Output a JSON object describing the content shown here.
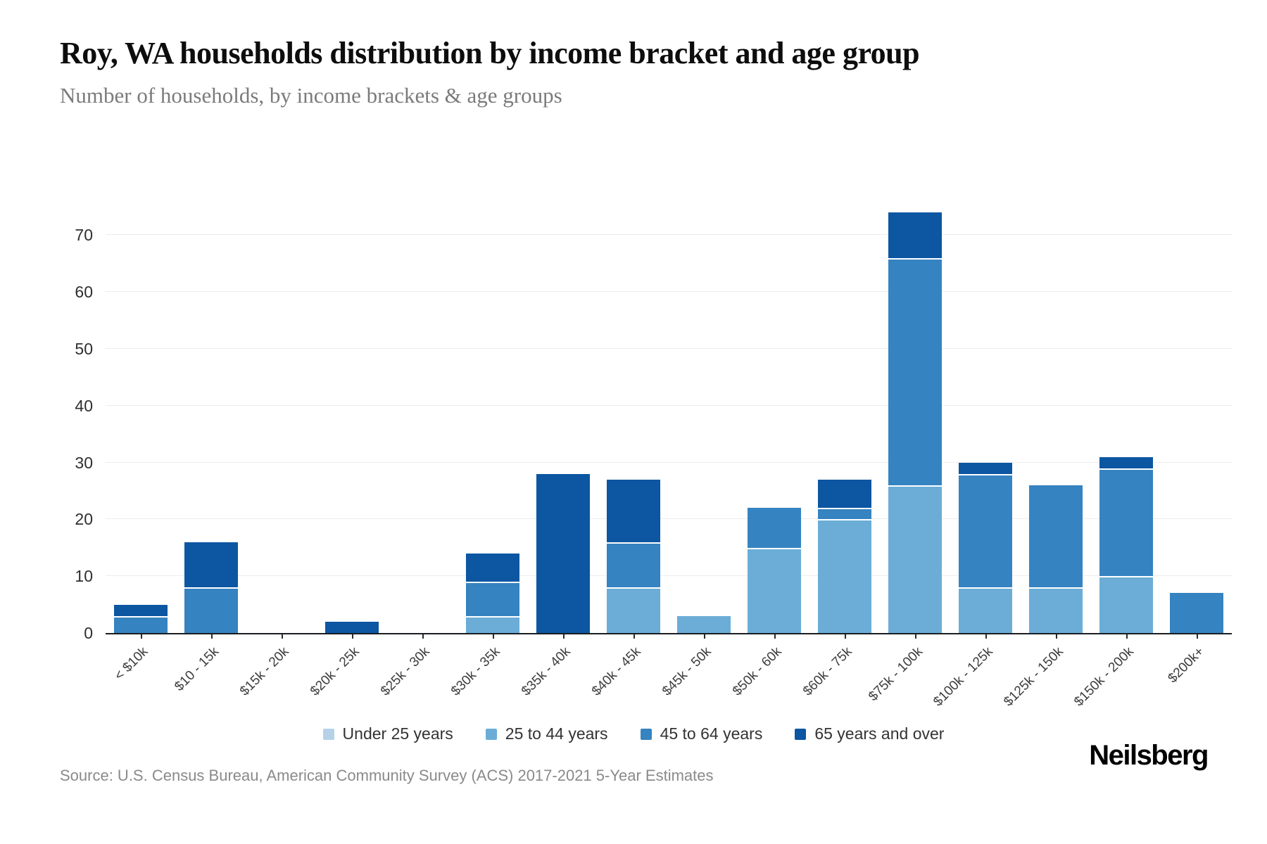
{
  "chart_data": {
    "type": "bar",
    "stacked": true,
    "title": "Roy, WA households distribution by income bracket and age group",
    "subtitle": "Number of households, by income brackets & age groups",
    "xlabel": "",
    "ylabel": "",
    "ylim": [
      0,
      75
    ],
    "yticks": [
      0,
      10,
      20,
      30,
      40,
      50,
      60,
      70
    ],
    "grid": true,
    "legend_position": "bottom",
    "categories": [
      "< $10k",
      "$10 - 15k",
      "$15k - 20k",
      "$20k - 25k",
      "$25k - 30k",
      "$30k - 35k",
      "$35k - 40k",
      "$40k - 45k",
      "$45k - 50k",
      "$50k - 60k",
      "$60k - 75k",
      "$75k - 100k",
      "$100k - 125k",
      "$125k - 150k",
      "$150k - 200k",
      "$200k+"
    ],
    "series": [
      {
        "name": "Under 25 years",
        "color": "#b5d2e8",
        "values": [
          0,
          0,
          0,
          0,
          0,
          0,
          0,
          0,
          0,
          0,
          0,
          0,
          0,
          0,
          0,
          0
        ]
      },
      {
        "name": "25 to 44 years",
        "color": "#6badd6",
        "values": [
          0,
          0,
          0,
          0,
          0,
          3,
          0,
          8,
          3,
          15,
          20,
          26,
          8,
          8,
          10,
          0
        ]
      },
      {
        "name": "45 to 64 years",
        "color": "#3583c1",
        "values": [
          3,
          8,
          0,
          0,
          0,
          6,
          0,
          8,
          0,
          7,
          2,
          40,
          20,
          18,
          19,
          7
        ]
      },
      {
        "name": "65 years and over",
        "color": "#0c56a2",
        "values": [
          2,
          8,
          0,
          2,
          0,
          5,
          28,
          11,
          0,
          0,
          5,
          8,
          2,
          0,
          2,
          0
        ]
      }
    ]
  },
  "footer": {
    "source": "Source: U.S. Census Bureau, American Community Survey (ACS) 2017-2021 5-Year Estimates",
    "brand": "Neilsberg"
  }
}
